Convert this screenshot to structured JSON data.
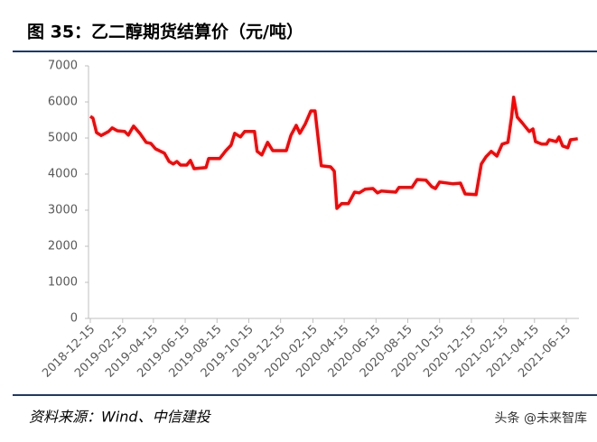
{
  "chart_data": {
    "type": "line",
    "title": "图 35：乙二醇期货结算价（元/吨）",
    "source": "资料来源：Wind、中信建投",
    "watermark": "头条 @未来智库",
    "color": "#ff0000",
    "grid": false,
    "ylim": [
      0,
      7000
    ],
    "yticks": [
      0,
      1000,
      2000,
      3000,
      4000,
      5000,
      6000,
      7000
    ],
    "xticks": [
      "2018-12-15",
      "2019-02-15",
      "2019-04-15",
      "2019-06-15",
      "2019-08-15",
      "2019-10-15",
      "2019-12-15",
      "2020-02-15",
      "2020-04-15",
      "2020-06-15",
      "2020-08-15",
      "2020-10-15",
      "2020-12-15",
      "2021-02-15",
      "2021-04-15",
      "2021-06-15"
    ],
    "x": [
      "2018-12-15",
      "2018-12-20",
      "2018-12-27",
      "2019-01-05",
      "2019-01-19",
      "2019-01-26",
      "2019-02-05",
      "2019-02-19",
      "2019-02-26",
      "2019-03-08",
      "2019-03-20",
      "2019-04-01",
      "2019-04-10",
      "2019-04-19",
      "2019-05-06",
      "2019-05-15",
      "2019-05-23",
      "2019-05-30",
      "2019-06-06",
      "2019-06-18",
      "2019-06-25",
      "2019-07-02",
      "2019-07-25",
      "2019-07-30",
      "2019-08-20",
      "2019-09-01",
      "2019-09-11",
      "2019-09-18",
      "2019-09-29",
      "2019-10-07",
      "2019-10-26",
      "2019-10-31",
      "2019-11-09",
      "2019-11-20",
      "2019-11-30",
      "2019-12-26",
      "2020-01-04",
      "2020-01-14",
      "2020-01-21",
      "2020-01-31",
      "2020-02-11",
      "2020-02-19",
      "2020-03-02",
      "2020-03-20",
      "2020-03-27",
      "2020-04-01",
      "2020-04-10",
      "2020-04-23",
      "2020-05-05",
      "2020-05-14",
      "2020-05-25",
      "2020-06-09",
      "2020-06-18",
      "2020-06-25",
      "2020-07-23",
      "2020-07-29",
      "2020-08-23",
      "2020-09-02",
      "2020-09-19",
      "2020-09-30",
      "2020-10-07",
      "2020-10-15",
      "2020-11-10",
      "2020-11-24",
      "2020-12-03",
      "2020-12-24",
      "2021-01-03",
      "2021-01-12",
      "2021-01-22",
      "2021-02-02",
      "2021-02-12",
      "2021-02-23",
      "2021-03-02",
      "2021-03-06",
      "2021-03-13",
      "2021-03-22",
      "2021-04-05",
      "2021-04-12",
      "2021-04-17",
      "2021-04-29",
      "2021-05-08",
      "2021-05-13",
      "2021-05-27",
      "2021-06-01",
      "2021-06-08",
      "2021-06-18",
      "2021-06-23",
      "2021-07-07"
    ],
    "values": [
      5600,
      5550,
      5150,
      5070,
      5180,
      5280,
      5200,
      5180,
      5080,
      5330,
      5130,
      4880,
      4850,
      4700,
      4580,
      4350,
      4280,
      4350,
      4250,
      4250,
      4380,
      4150,
      4180,
      4430,
      4430,
      4650,
      4800,
      5130,
      5030,
      5180,
      5180,
      4630,
      4530,
      4880,
      4650,
      4650,
      5080,
      5350,
      5130,
      5380,
      5750,
      5750,
      4230,
      4200,
      4080,
      3050,
      3180,
      3180,
      3500,
      3480,
      3580,
      3600,
      3480,
      3530,
      3500,
      3630,
      3630,
      3850,
      3830,
      3650,
      3600,
      3780,
      3730,
      3750,
      3450,
      3430,
      4280,
      4480,
      4630,
      4500,
      4830,
      4880,
      5580,
      6130,
      5580,
      5430,
      5180,
      5250,
      4900,
      4830,
      4830,
      4950,
      4900,
      5030,
      4780,
      4730,
      4950,
      4980
    ]
  }
}
